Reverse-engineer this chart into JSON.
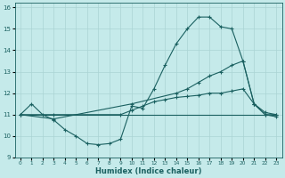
{
  "xlabel": "Humidex (Indice chaleur)",
  "xlim": [
    -0.5,
    23.5
  ],
  "ylim": [
    9,
    16.2
  ],
  "yticks": [
    9,
    10,
    11,
    12,
    13,
    14,
    15,
    16
  ],
  "xticks": [
    0,
    1,
    2,
    3,
    4,
    5,
    6,
    7,
    8,
    9,
    10,
    11,
    12,
    13,
    14,
    15,
    16,
    17,
    18,
    19,
    20,
    21,
    22,
    23
  ],
  "bg_color": "#c5eaea",
  "line_color": "#1a6060",
  "grid_color": "#aad4d4",
  "lines": [
    {
      "x": [
        0,
        1,
        2,
        3,
        4,
        5,
        6,
        7,
        8,
        9,
        10,
        11,
        12,
        13,
        14,
        15,
        16,
        17,
        18,
        19,
        20,
        21,
        22,
        23
      ],
      "y": [
        11.0,
        11.5,
        11.0,
        10.75,
        10.3,
        10.0,
        9.65,
        9.6,
        9.65,
        9.85,
        11.4,
        11.3,
        12.2,
        13.3,
        14.3,
        15.0,
        15.55,
        15.55,
        15.1,
        15.0,
        13.5,
        11.5,
        11.0,
        10.9
      ],
      "marker": true
    },
    {
      "x": [
        0,
        23
      ],
      "y": [
        11.0,
        11.0
      ],
      "marker": false
    },
    {
      "x": [
        0,
        3,
        10,
        14,
        15,
        16,
        17,
        18,
        19,
        20,
        21,
        22,
        23
      ],
      "y": [
        11.0,
        10.8,
        11.5,
        12.0,
        12.2,
        12.5,
        12.8,
        13.0,
        13.3,
        13.5,
        11.5,
        11.1,
        11.0
      ],
      "marker": true
    },
    {
      "x": [
        0,
        3,
        9,
        10,
        11,
        12,
        13,
        14,
        15,
        16,
        17,
        18,
        19,
        20,
        21,
        22,
        23
      ],
      "y": [
        11.0,
        11.0,
        11.0,
        11.2,
        11.4,
        11.6,
        11.7,
        11.8,
        11.85,
        11.9,
        12.0,
        12.0,
        12.1,
        12.2,
        11.5,
        11.0,
        11.0
      ],
      "marker": true
    }
  ]
}
